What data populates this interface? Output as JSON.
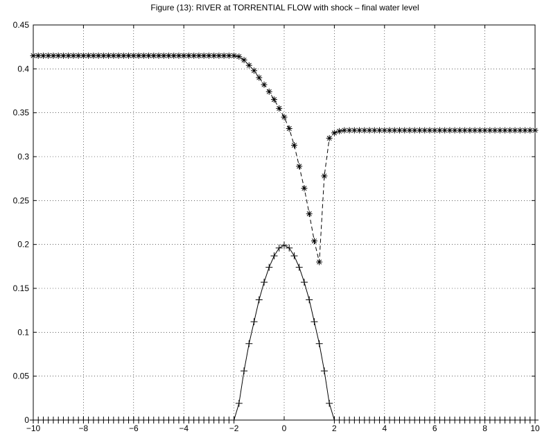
{
  "chart_data": {
    "type": "line",
    "title": "Figure (13): RIVER at TORRENTIAL FLOW with shock – final water level",
    "xlabel": "",
    "ylabel": "",
    "xlim": [
      -10,
      10
    ],
    "ylim": [
      0,
      0.45
    ],
    "grid": true,
    "x_ticks": [
      -10,
      -8,
      -6,
      -4,
      -2,
      0,
      2,
      4,
      6,
      8,
      10
    ],
    "x_tick_labels": [
      "−10",
      "−8",
      "−6",
      "−4",
      "−2",
      "0",
      "2",
      "4",
      "6",
      "8",
      "10"
    ],
    "y_ticks": [
      0,
      0.05,
      0.1,
      0.15,
      0.2,
      0.25,
      0.3,
      0.35,
      0.4,
      0.45
    ],
    "y_tick_labels": [
      "0",
      "0.05",
      "0.1",
      "0.15",
      "0.2",
      "0.25",
      "0.3",
      "0.35",
      "0.4",
      "0.45"
    ],
    "series": [
      {
        "name": "",
        "style": "dashed",
        "marker": "asterisk",
        "x": [
          -10,
          -9.8,
          -9.6,
          -9.4,
          -9.2,
          -9.0,
          -8.8,
          -8.6,
          -8.4,
          -8.2,
          -8.0,
          -7.8,
          -7.6,
          -7.4,
          -7.2,
          -7.0,
          -6.8,
          -6.6,
          -6.4,
          -6.2,
          -6.0,
          -5.8,
          -5.6,
          -5.4,
          -5.2,
          -5.0,
          -4.8,
          -4.6,
          -4.4,
          -4.2,
          -4.0,
          -3.8,
          -3.6,
          -3.4,
          -3.2,
          -3.0,
          -2.8,
          -2.6,
          -2.4,
          -2.2,
          -2.0,
          -1.8,
          -1.6,
          -1.4,
          -1.2,
          -1.0,
          -0.8,
          -0.6,
          -0.4,
          -0.2,
          0.0,
          0.2,
          0.4,
          0.6,
          0.8,
          1.0,
          1.2,
          1.4,
          1.6,
          1.8,
          2.0,
          2.2,
          2.4,
          2.6,
          2.8,
          3.0,
          3.2,
          3.4,
          3.6,
          3.8,
          4.0,
          4.2,
          4.4,
          4.6,
          4.8,
          5.0,
          5.2,
          5.4,
          5.6,
          5.8,
          6.0,
          6.2,
          6.4,
          6.6,
          6.8,
          7.0,
          7.2,
          7.4,
          7.6,
          7.8,
          8.0,
          8.2,
          8.4,
          8.6,
          8.8,
          9.0,
          9.2,
          9.4,
          9.6,
          9.8,
          10.0
        ],
        "values": [
          0.415,
          0.415,
          0.415,
          0.415,
          0.415,
          0.415,
          0.415,
          0.415,
          0.415,
          0.415,
          0.415,
          0.415,
          0.415,
          0.415,
          0.415,
          0.415,
          0.415,
          0.415,
          0.415,
          0.415,
          0.415,
          0.415,
          0.415,
          0.415,
          0.415,
          0.415,
          0.415,
          0.415,
          0.415,
          0.415,
          0.415,
          0.415,
          0.415,
          0.415,
          0.415,
          0.415,
          0.415,
          0.415,
          0.415,
          0.415,
          0.415,
          0.414,
          0.41,
          0.404,
          0.398,
          0.39,
          0.382,
          0.374,
          0.365,
          0.355,
          0.345,
          0.332,
          0.313,
          0.289,
          0.264,
          0.235,
          0.204,
          0.18,
          0.278,
          0.321,
          0.327,
          0.329,
          0.33,
          0.33,
          0.33,
          0.33,
          0.33,
          0.33,
          0.33,
          0.33,
          0.33,
          0.33,
          0.33,
          0.33,
          0.33,
          0.33,
          0.33,
          0.33,
          0.33,
          0.33,
          0.33,
          0.33,
          0.33,
          0.33,
          0.33,
          0.33,
          0.33,
          0.33,
          0.33,
          0.33,
          0.33,
          0.33,
          0.33,
          0.33,
          0.33,
          0.33,
          0.33,
          0.33,
          0.33,
          0.33,
          0.33
        ]
      },
      {
        "name": "",
        "style": "solid",
        "marker": "plus",
        "x": [
          -10,
          -9.8,
          -9.6,
          -9.4,
          -9.2,
          -9.0,
          -8.8,
          -8.6,
          -8.4,
          -8.2,
          -8.0,
          -7.8,
          -7.6,
          -7.4,
          -7.2,
          -7.0,
          -6.8,
          -6.6,
          -6.4,
          -6.2,
          -6.0,
          -5.8,
          -5.6,
          -5.4,
          -5.2,
          -5.0,
          -4.8,
          -4.6,
          -4.4,
          -4.2,
          -4.0,
          -3.8,
          -3.6,
          -3.4,
          -3.2,
          -3.0,
          -2.8,
          -2.6,
          -2.4,
          -2.2,
          -2.0,
          -1.8,
          -1.6,
          -1.4,
          -1.2,
          -1.0,
          -0.8,
          -0.6,
          -0.4,
          -0.2,
          0.0,
          0.2,
          0.4,
          0.6,
          0.8,
          1.0,
          1.2,
          1.4,
          1.6,
          1.8,
          2.0,
          2.2,
          2.4,
          2.6,
          2.8,
          3.0,
          3.2,
          3.4,
          3.6,
          3.8,
          4.0,
          4.2,
          4.4,
          4.6,
          4.8,
          5.0,
          5.2,
          5.4,
          5.6,
          5.8,
          6.0,
          6.2,
          6.4,
          6.6,
          6.8,
          7.0,
          7.2,
          7.4,
          7.6,
          7.8,
          8.0,
          8.2,
          8.4,
          8.6,
          8.8,
          9.0,
          9.2,
          9.4,
          9.6,
          9.8,
          10.0
        ],
        "values": [
          0,
          0,
          0,
          0,
          0,
          0,
          0,
          0,
          0,
          0,
          0,
          0,
          0,
          0,
          0,
          0,
          0,
          0,
          0,
          0,
          0,
          0,
          0,
          0,
          0,
          0,
          0,
          0,
          0,
          0,
          0,
          0,
          0,
          0,
          0,
          0,
          0,
          0,
          0,
          0,
          0,
          0.019,
          0.056,
          0.087,
          0.112,
          0.137,
          0.157,
          0.174,
          0.187,
          0.196,
          0.199,
          0.196,
          0.187,
          0.174,
          0.157,
          0.137,
          0.112,
          0.087,
          0.056,
          0.019,
          0,
          0,
          0,
          0,
          0,
          0,
          0,
          0,
          0,
          0,
          0,
          0,
          0,
          0,
          0,
          0,
          0,
          0,
          0,
          0,
          0,
          0,
          0,
          0,
          0,
          0,
          0,
          0,
          0,
          0,
          0,
          0,
          0,
          0,
          0,
          0,
          0,
          0,
          0,
          0,
          0
        ]
      }
    ]
  }
}
